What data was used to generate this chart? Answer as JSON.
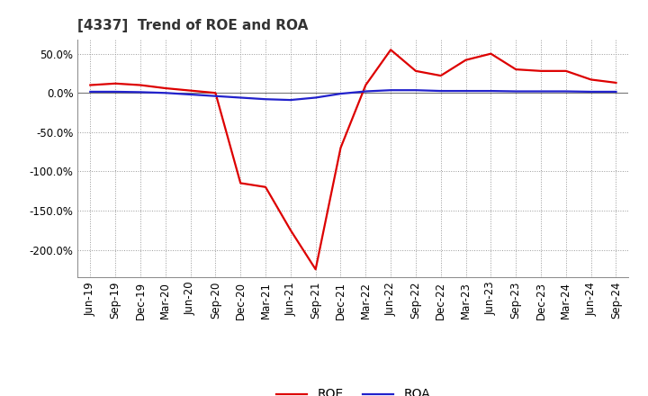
{
  "title": "[4337]  Trend of ROE and ROA",
  "x_labels": [
    "Jun-19",
    "Sep-19",
    "Dec-19",
    "Mar-20",
    "Jun-20",
    "Sep-20",
    "Dec-20",
    "Mar-21",
    "Jun-21",
    "Sep-21",
    "Dec-21",
    "Mar-22",
    "Jun-22",
    "Sep-22",
    "Dec-22",
    "Mar-23",
    "Jun-23",
    "Sep-23",
    "Dec-23",
    "Mar-24",
    "Jun-24",
    "Sep-24"
  ],
  "roe": [
    10.0,
    12.0,
    10.0,
    6.0,
    3.0,
    0.0,
    -115.0,
    -120.0,
    -175.0,
    -225.0,
    -70.0,
    10.0,
    55.0,
    28.0,
    22.0,
    42.0,
    50.0,
    30.0,
    28.0,
    28.0,
    17.0,
    13.0
  ],
  "roa": [
    1.5,
    1.5,
    1.0,
    0.0,
    -2.0,
    -4.0,
    -6.0,
    -8.0,
    -9.0,
    -6.0,
    -1.0,
    2.0,
    3.5,
    3.5,
    2.5,
    2.5,
    2.5,
    2.0,
    2.0,
    2.0,
    1.5,
    1.5
  ],
  "roe_color": "#dd0000",
  "roa_color": "#2222cc",
  "background_color": "#ffffff",
  "grid_color": "#999999",
  "ylim": [
    -235,
    68
  ],
  "yticks": [
    50.0,
    0.0,
    -50.0,
    -100.0,
    -150.0,
    -200.0
  ],
  "line_width": 1.6,
  "title_fontsize": 11,
  "tick_fontsize": 8.5
}
